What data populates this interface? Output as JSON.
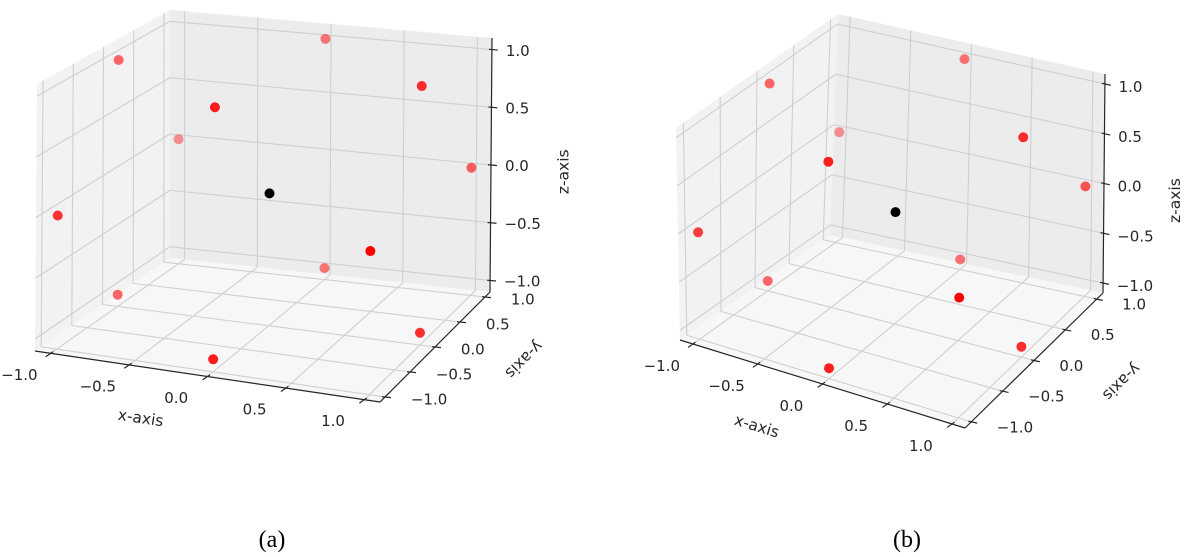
{
  "chart_data": [
    {
      "type": "scatter",
      "projection": "3d",
      "caption": "(a)",
      "xlabel": "x-axis",
      "ylabel": "y-axis",
      "zlabel": "z-axis",
      "xlim": [
        -1.1,
        1.1
      ],
      "ylim": [
        -1.1,
        1.1
      ],
      "zlim": [
        -1.1,
        1.1
      ],
      "xticks": [
        "−1.0",
        "−0.5",
        "0.0",
        "0.5",
        "1.0"
      ],
      "yticks": [
        "−1.0",
        "−0.5",
        "0.0",
        "0.5",
        "1.0"
      ],
      "zticks": [
        "−1.0",
        "−0.5",
        "0.0",
        "0.5",
        "1.0"
      ],
      "grid": true,
      "view": {
        "elev": 20,
        "azim": -70
      },
      "series": [
        {
          "color": "#ff0000",
          "points": [
            [
              -1,
              -1,
              0
            ],
            [
              -1,
              1,
              0
            ],
            [
              1,
              -1,
              0
            ],
            [
              1,
              1,
              0
            ],
            [
              -1,
              0,
              -1
            ],
            [
              -1,
              0,
              1
            ],
            [
              1,
              0,
              -1
            ],
            [
              1,
              0,
              1
            ],
            [
              0,
              -1,
              -1
            ],
            [
              0,
              -1,
              1
            ],
            [
              0,
              1,
              -1
            ],
            [
              0,
              1,
              1
            ]
          ]
        },
        {
          "color": "#000000",
          "points": [
            [
              0,
              0,
              0
            ]
          ]
        }
      ]
    },
    {
      "type": "scatter",
      "projection": "3d",
      "caption": "(b)",
      "xlabel": "x-axis",
      "ylabel": "y-axis",
      "zlabel": "z-axis",
      "xlim": [
        -1.1,
        1.1
      ],
      "ylim": [
        -1.1,
        1.1
      ],
      "zlim": [
        -1.1,
        1.1
      ],
      "xticks": [
        "−1.0",
        "−0.5",
        "0.0",
        "0.5",
        "1.0"
      ],
      "yticks": [
        "−1.0",
        "−0.5",
        "0.0",
        "0.5",
        "1.0"
      ],
      "zticks": [
        "−1.0",
        "−0.5",
        "0.0",
        "0.5",
        "1.0"
      ],
      "grid": true,
      "view": {
        "elev": 25,
        "azim": -60
      },
      "series": [
        {
          "color": "#ff0000",
          "points": [
            [
              -1,
              -1,
              0
            ],
            [
              -1,
              1,
              0
            ],
            [
              1,
              -1,
              0
            ],
            [
              1,
              1,
              0
            ],
            [
              -1,
              0,
              -1
            ],
            [
              -1,
              0,
              1
            ],
            [
              1,
              0,
              -1
            ],
            [
              1,
              0,
              1
            ],
            [
              0,
              -1,
              -1
            ],
            [
              0,
              -1,
              1
            ],
            [
              0,
              1,
              -1
            ],
            [
              0,
              1,
              1
            ]
          ]
        },
        {
          "color": "#000000",
          "points": [
            [
              0,
              0,
              0
            ]
          ]
        }
      ]
    }
  ]
}
